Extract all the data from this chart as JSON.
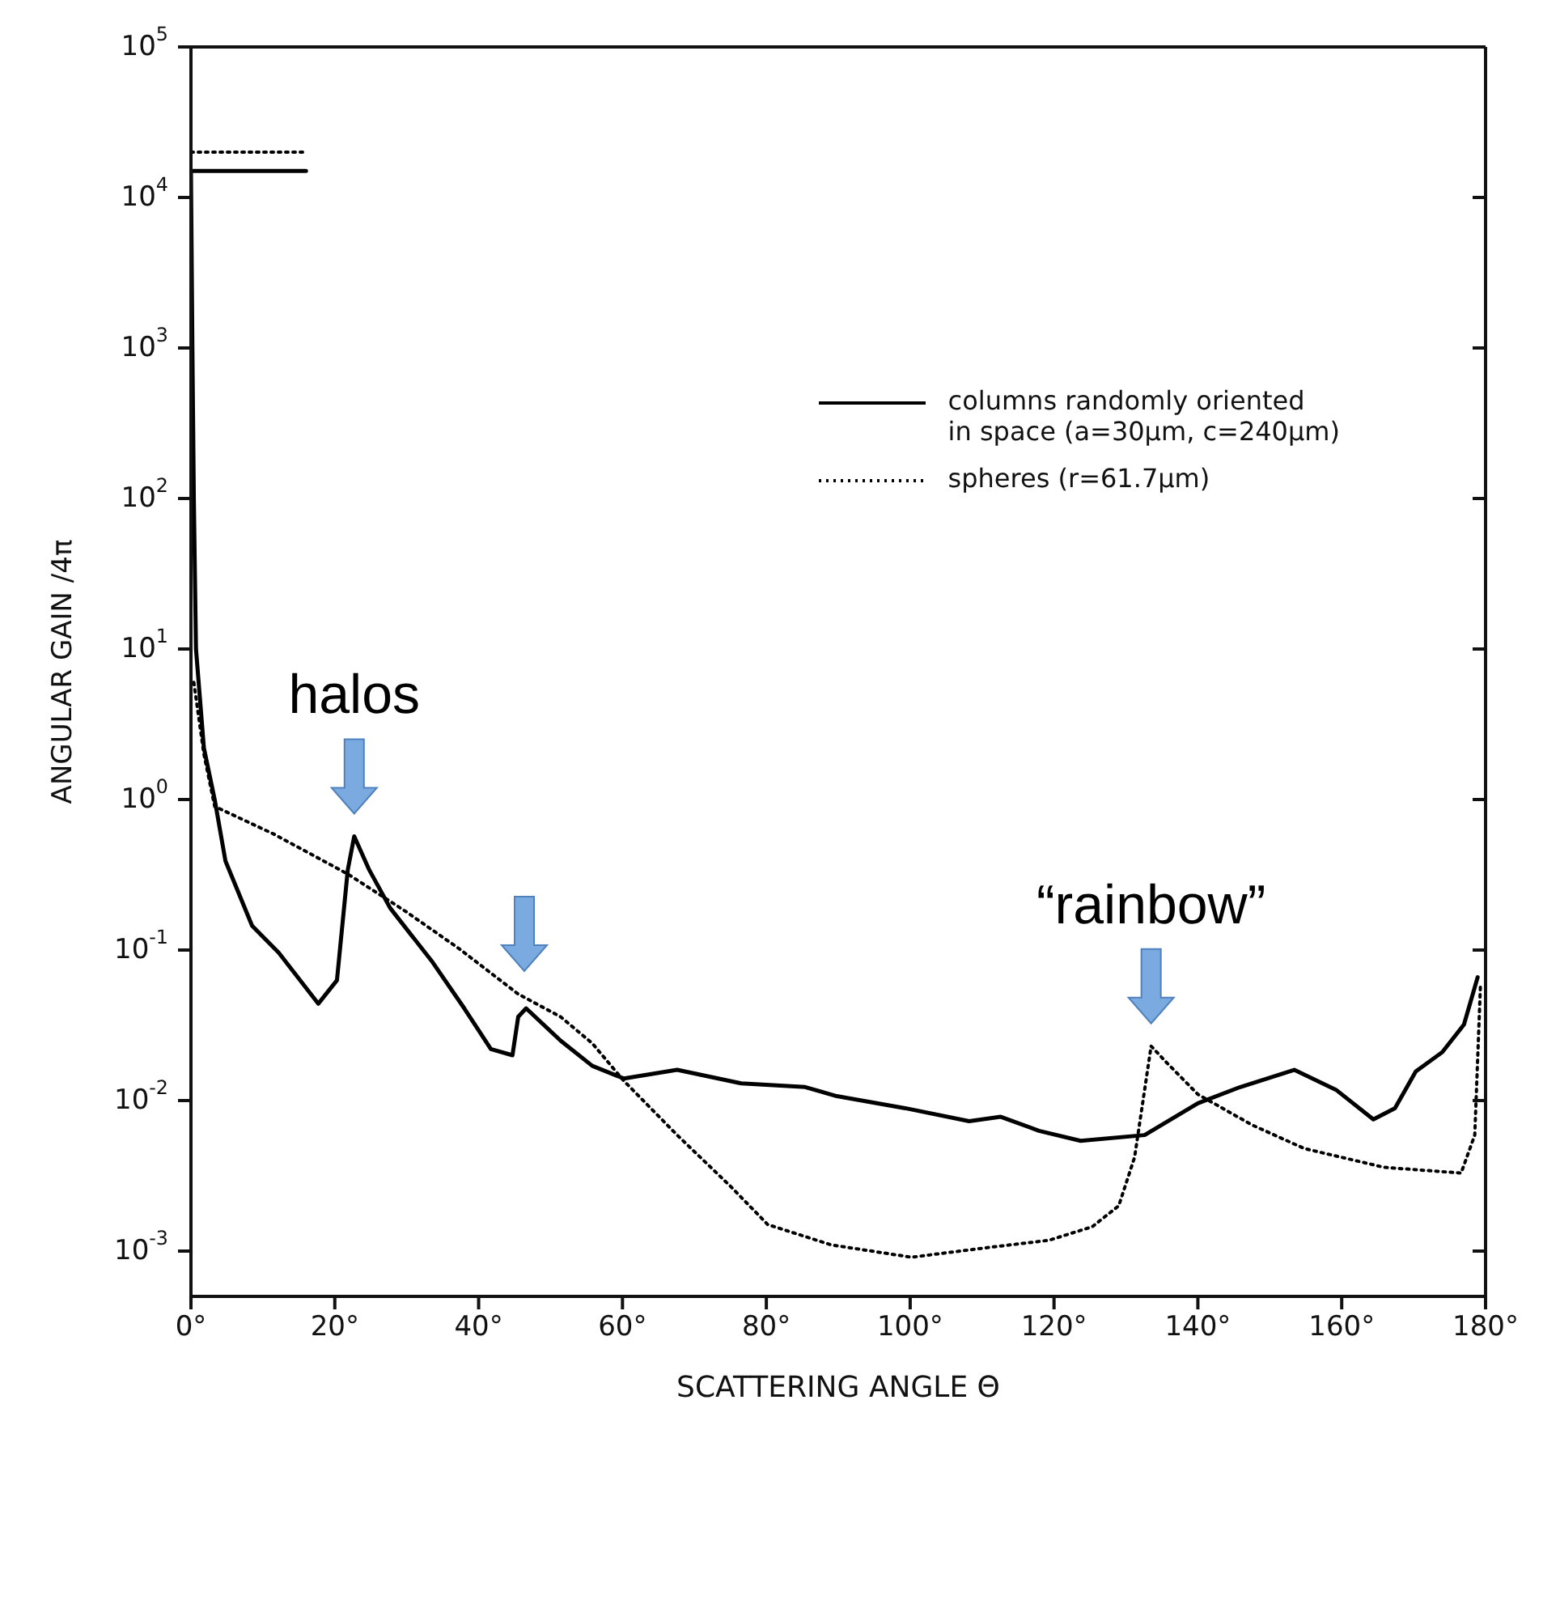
{
  "chart_data": {
    "type": "line",
    "xlabel": "SCATTERING ANGLE Θ",
    "ylabel": "ANGULAR GAIN /4π",
    "log": "y",
    "legend": "top right",
    "xlim": [
      0,
      180
    ],
    "xticks": [
      {
        "value": 0,
        "label": "0°"
      },
      {
        "value": 20,
        "label": "20°"
      },
      {
        "value": 40,
        "label": "40°"
      },
      {
        "value": 60,
        "label": "60°"
      },
      {
        "value": 80,
        "label": "80°"
      },
      {
        "value": 100,
        "label": "100°"
      },
      {
        "value": 120,
        "label": "120°"
      },
      {
        "value": 140,
        "label": "140°"
      },
      {
        "value": 160,
        "label": "160°"
      },
      {
        "value": 180,
        "label": "180°"
      }
    ],
    "ylim": [
      0.0005,
      100000
    ],
    "yticks": [
      {
        "value": 0.001,
        "label": "10$^{-3}$"
      },
      {
        "value": 0.01,
        "label": "10$^{-2}$"
      },
      {
        "value": 0.1,
        "label": "10$^{-1}$"
      },
      {
        "value": 1,
        "label": "10$^{0}$"
      },
      {
        "value": 10,
        "label": "10$^{1}$"
      },
      {
        "value": 100,
        "label": "10$^{2}$"
      },
      {
        "value": 1000,
        "label": "10$^{3}$"
      },
      {
        "value": 10000,
        "label": "10$^{4}$"
      },
      {
        "value": 100000,
        "label": "10$^{5}$"
      }
    ],
    "annotations": [
      {
        "text": "halos",
        "x": 22.7,
        "y": 0.57
      },
      {
        "text": "“rainbow”",
        "x": 133.5,
        "y": 0.023
      }
    ],
    "series": [
      {
        "name": "columns randomly oriented\nin space (a=30μm, c=240μm)",
        "color": "#000000",
        "line_style": "solid",
        "x": [
          0,
          0.2,
          0.4,
          0.7,
          1.8,
          3.3,
          4.8,
          8.5,
          12.2,
          17.7,
          20.3,
          21.8,
          22.7,
          24.8,
          27.7,
          33.6,
          38,
          41.7,
          44.7,
          45.5,
          46.6,
          51.4,
          55.8,
          60.2,
          67.6,
          76.5,
          85.4,
          89.8,
          99.3,
          108.2,
          112.6,
          117.9,
          123.7,
          132.6,
          140,
          145.9,
          153.4,
          159.2,
          164.4,
          167.4,
          170.3,
          174,
          177,
          178.9
        ],
        "values": [
          15000,
          1000,
          100,
          10,
          2.2,
          1.0,
          0.39,
          0.145,
          0.096,
          0.044,
          0.063,
          0.34,
          0.57,
          0.34,
          0.19,
          0.083,
          0.041,
          0.022,
          0.02,
          0.036,
          0.041,
          0.025,
          0.017,
          0.014,
          0.016,
          0.013,
          0.0123,
          0.0107,
          0.0089,
          0.0073,
          0.0078,
          0.0063,
          0.0054,
          0.0059,
          0.0096,
          0.0123,
          0.016,
          0.0118,
          0.0075,
          0.0089,
          0.0156,
          0.021,
          0.032,
          0.066
        ]
      },
      {
        "name": "spheres (r=61.7μm)",
        "color": "#000000",
        "line_style": "dotted",
        "x": [
          0.4,
          1.8,
          3.3,
          11.5,
          21.8,
          29.9,
          37.3,
          45.5,
          51.4,
          55.8,
          60.2,
          67.6,
          75,
          80.2,
          89,
          100.2,
          110.4,
          119.3,
          125.3,
          129,
          131.2,
          132.6,
          133.5,
          135.6,
          140,
          147.5,
          154.8,
          165.9,
          176.6,
          178.5,
          179.3
        ],
        "values": [
          6,
          2,
          0.9,
          0.59,
          0.32,
          0.18,
          0.102,
          0.051,
          0.036,
          0.024,
          0.0135,
          0.0059,
          0.0027,
          0.0015,
          0.0011,
          0.00091,
          0.00105,
          0.00118,
          0.00145,
          0.002,
          0.0042,
          0.0118,
          0.023,
          0.018,
          0.011,
          0.0069,
          0.0048,
          0.0036,
          0.0033,
          0.0059,
          0.06
        ]
      },
      {
        "color": "#000000",
        "line_style": "solid",
        "x": [
          0,
          16
        ],
        "values": [
          15000,
          15000
        ]
      },
      {
        "color": "#000000",
        "line_style": "dotted",
        "x": [
          0,
          16
        ],
        "values": [
          20000,
          20000
        ]
      }
    ]
  }
}
